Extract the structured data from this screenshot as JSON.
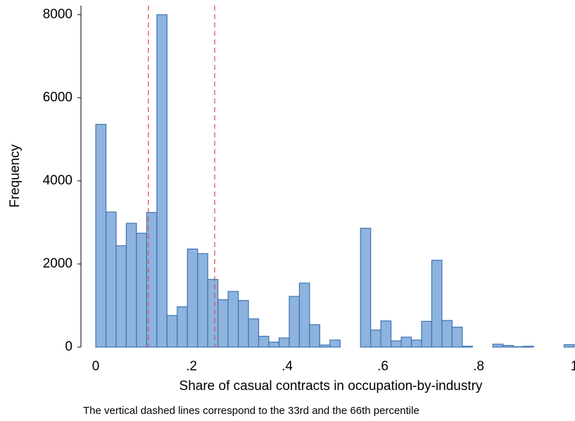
{
  "chart_data": {
    "type": "histogram",
    "xlabel": "Share of casual contracts in occupation-by-industry",
    "ylabel": "Frequency",
    "note": "The vertical dashed lines correspond to the 33rd and the 66th percentile",
    "bins": [
      0,
      0.0213,
      0.0426,
      0.0638,
      0.0851,
      0.1064,
      0.1277,
      0.1489,
      0.1702,
      0.1915,
      0.2128,
      0.234,
      0.2553,
      0.2766,
      0.2979,
      0.3191,
      0.3404,
      0.3617,
      0.383,
      0.4043,
      0.4255,
      0.4468,
      0.4681,
      0.4894,
      0.5106,
      0.5319,
      0.5532,
      0.5745,
      0.5957,
      0.617,
      0.6383,
      0.6596,
      0.6809,
      0.7021,
      0.7234,
      0.7447,
      0.766,
      0.7872,
      0.8085,
      0.8298,
      0.8511,
      0.8723,
      0.8936,
      0.9149,
      0.9362,
      0.9574,
      0.9787,
      1
    ],
    "values": [
      5360,
      3250,
      2440,
      2980,
      2740,
      3240,
      8000,
      760,
      970,
      2360,
      2250,
      1630,
      1140,
      1340,
      1120,
      680,
      260,
      120,
      220,
      1220,
      1540,
      540,
      50,
      170,
      0,
      0,
      2860,
      410,
      630,
      150,
      240,
      170,
      620,
      2090,
      640,
      480,
      20,
      0,
      0,
      70,
      40,
      10,
      20,
      0,
      0,
      0,
      60
    ],
    "color": "#8db3de",
    "edgecolor": "#3f73b3",
    "percentile_lines": [
      0.11,
      0.2485
    ],
    "percentile_color": "#d9534f",
    "xlim": [
      -0.031,
      1
    ],
    "ylim": [
      0,
      8150
    ],
    "xticks": [
      0,
      {
        "value": 0.2,
        "label": ".2"
      },
      {
        "value": 0.4,
        "label": ".4"
      },
      {
        "value": 0.6,
        "label": ".6"
      },
      {
        "value": 0.8,
        "label": ".8"
      },
      1
    ],
    "yticks": [
      0,
      2000,
      4000,
      6000,
      8000
    ]
  }
}
